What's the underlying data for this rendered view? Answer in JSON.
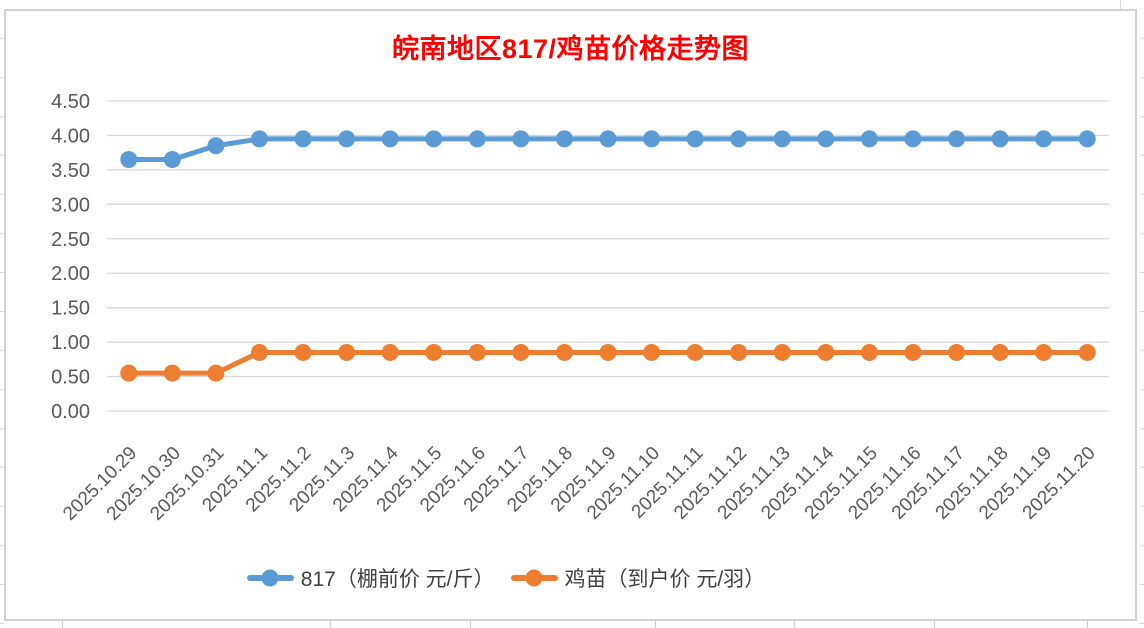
{
  "chart_data": {
    "type": "line",
    "title": "皖南地区817/鸡苗价格走势图",
    "title_color": "#FF0000",
    "categories": [
      "2025.10.29",
      "2025.10.30",
      "2025.10.31",
      "2025.11.1",
      "2025.11.2",
      "2025.11.3",
      "2025.11.4",
      "2025.11.5",
      "2025.11.6",
      "2025.11.7",
      "2025.11.8",
      "2025.11.9",
      "2025.11.10",
      "2025.11.11",
      "2025.11.12",
      "2025.11.13",
      "2025.11.14",
      "2025.11.15",
      "2025.11.16",
      "2025.11.17",
      "2025.11.18",
      "2025.11.19",
      "2025.11.20"
    ],
    "series": [
      {
        "name": "817（棚前价 元/斤）",
        "color": "#5B9BD5",
        "values": [
          3.65,
          3.65,
          3.85,
          3.95,
          3.95,
          3.95,
          3.95,
          3.95,
          3.95,
          3.95,
          3.95,
          3.95,
          3.95,
          3.95,
          3.95,
          3.95,
          3.95,
          3.95,
          3.95,
          3.95,
          3.95,
          3.95,
          3.95
        ]
      },
      {
        "name": "鸡苗（到户价 元/羽）",
        "color": "#ED7D31",
        "values": [
          0.55,
          0.55,
          0.55,
          0.85,
          0.85,
          0.85,
          0.85,
          0.85,
          0.85,
          0.85,
          0.85,
          0.85,
          0.85,
          0.85,
          0.85,
          0.85,
          0.85,
          0.85,
          0.85,
          0.85,
          0.85,
          0.85,
          0.85
        ]
      }
    ],
    "xlabel": "",
    "ylabel": "",
    "ylim": [
      0,
      4.5
    ],
    "ytick_step": 0.5,
    "ytick_decimals": 2,
    "grid": true,
    "gridline_color": "#D9D9D9",
    "axis_text_color": "#595959",
    "x_label_rotation": -45,
    "legend_position": "bottom"
  }
}
